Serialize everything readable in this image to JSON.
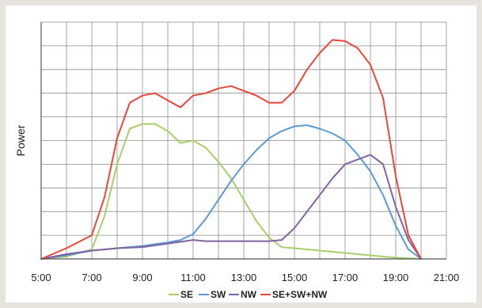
{
  "chart_data": {
    "type": "line",
    "ylabel": "Power",
    "xlabel": "",
    "x_unit": "hours",
    "xlim": [
      5,
      21
    ],
    "ylim": [
      0,
      10
    ],
    "x_ticks": [
      "5:00",
      "7:00",
      "9:00",
      "11:00",
      "13:00",
      "15:00",
      "17:00",
      "19:00",
      "21:00"
    ],
    "x_tick_values": [
      5,
      7,
      9,
      11,
      13,
      15,
      17,
      19,
      21
    ],
    "grid": true,
    "legend_position": "bottom",
    "series": [
      {
        "name": "SE",
        "color": "#a9cf6a",
        "points": [
          [
            5,
            0
          ],
          [
            6,
            0.1
          ],
          [
            7,
            0.4
          ],
          [
            7.5,
            1.8
          ],
          [
            8,
            4.0
          ],
          [
            8.5,
            5.5
          ],
          [
            9,
            5.7
          ],
          [
            9.5,
            5.7
          ],
          [
            10,
            5.4
          ],
          [
            10.5,
            4.9
          ],
          [
            11,
            5.0
          ],
          [
            11.5,
            4.7
          ],
          [
            12,
            4.1
          ],
          [
            12.5,
            3.4
          ],
          [
            13,
            2.5
          ],
          [
            13.5,
            1.6
          ],
          [
            14,
            0.9
          ],
          [
            14.5,
            0.5
          ],
          [
            15,
            0.45
          ],
          [
            16,
            0.35
          ],
          [
            17,
            0.25
          ],
          [
            18,
            0.15
          ],
          [
            19,
            0.05
          ],
          [
            20,
            0
          ]
        ]
      },
      {
        "name": "SW",
        "color": "#5b9bd5",
        "points": [
          [
            5,
            0
          ],
          [
            6,
            0.15
          ],
          [
            7,
            0.35
          ],
          [
            8,
            0.45
          ],
          [
            9,
            0.55
          ],
          [
            10,
            0.7
          ],
          [
            10.5,
            0.8
          ],
          [
            11,
            1.05
          ],
          [
            11.5,
            1.7
          ],
          [
            12,
            2.5
          ],
          [
            12.5,
            3.3
          ],
          [
            13,
            4.0
          ],
          [
            13.5,
            4.6
          ],
          [
            14,
            5.1
          ],
          [
            14.5,
            5.4
          ],
          [
            15,
            5.6
          ],
          [
            15.5,
            5.65
          ],
          [
            16,
            5.5
          ],
          [
            16.5,
            5.3
          ],
          [
            17,
            5.0
          ],
          [
            17.5,
            4.4
          ],
          [
            18,
            3.7
          ],
          [
            18.5,
            2.7
          ],
          [
            19,
            1.4
          ],
          [
            19.5,
            0.4
          ],
          [
            20,
            0
          ]
        ]
      },
      {
        "name": "NW",
        "color": "#8064a2",
        "points": [
          [
            5,
            0
          ],
          [
            6,
            0.2
          ],
          [
            7,
            0.35
          ],
          [
            8,
            0.45
          ],
          [
            9,
            0.5
          ],
          [
            10,
            0.65
          ],
          [
            11,
            0.8
          ],
          [
            11.5,
            0.75
          ],
          [
            12,
            0.75
          ],
          [
            13,
            0.75
          ],
          [
            14,
            0.75
          ],
          [
            14.5,
            0.8
          ],
          [
            15,
            1.3
          ],
          [
            15.5,
            2.0
          ],
          [
            16,
            2.7
          ],
          [
            16.5,
            3.4
          ],
          [
            17,
            4.0
          ],
          [
            17.5,
            4.2
          ],
          [
            18,
            4.4
          ],
          [
            18.5,
            4.0
          ],
          [
            19,
            2.2
          ],
          [
            19.5,
            0.8
          ],
          [
            20,
            0
          ]
        ]
      },
      {
        "name": "SE+SW+NW",
        "color": "#e8483a",
        "points": [
          [
            5,
            0
          ],
          [
            6,
            0.45
          ],
          [
            7,
            1.0
          ],
          [
            7.5,
            2.6
          ],
          [
            8,
            5.1
          ],
          [
            8.5,
            6.6
          ],
          [
            9,
            6.9
          ],
          [
            9.5,
            7.0
          ],
          [
            10,
            6.7
          ],
          [
            10.5,
            6.4
          ],
          [
            11,
            6.9
          ],
          [
            11.5,
            7.0
          ],
          [
            12,
            7.2
          ],
          [
            12.5,
            7.3
          ],
          [
            13,
            7.1
          ],
          [
            13.5,
            6.9
          ],
          [
            14,
            6.6
          ],
          [
            14.5,
            6.6
          ],
          [
            15,
            7.1
          ],
          [
            15.5,
            8.0
          ],
          [
            16,
            8.7
          ],
          [
            16.5,
            9.25
          ],
          [
            17,
            9.2
          ],
          [
            17.5,
            8.9
          ],
          [
            18,
            8.2
          ],
          [
            18.5,
            6.8
          ],
          [
            19,
            3.5
          ],
          [
            19.5,
            1.0
          ],
          [
            20,
            0
          ]
        ]
      }
    ]
  }
}
